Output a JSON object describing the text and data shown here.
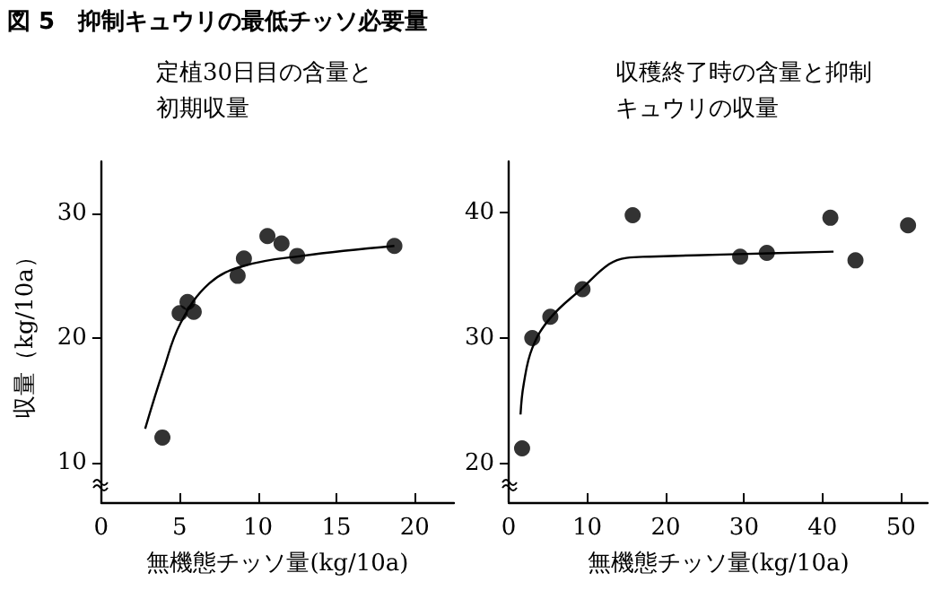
{
  "chart_data": [
    {
      "type": "scatter",
      "title": "図 5　抑制キュウリの最低チッソ必要量",
      "subtitle": "定植30日目の含量と初期収量",
      "xlabel": "無機態チッソ量(kg/10a)",
      "ylabel": "収量（kg/10a）",
      "xlim": [
        0,
        22.5
      ],
      "ylim": [
        6.8,
        34.2
      ],
      "xticks": [
        0,
        5,
        10,
        15,
        20
      ],
      "yticks": [
        10,
        20,
        30
      ],
      "grid": false,
      "marker": "circle",
      "series": [
        {
          "type": "scatter",
          "color": "#000000",
          "x": [
            3.9,
            5.0,
            5.5,
            5.9,
            8.7,
            9.1,
            10.6,
            11.5,
            12.5,
            18.7
          ],
          "values": [
            12.0,
            22.0,
            22.9,
            22.1,
            25.0,
            26.4,
            28.2,
            27.6,
            26.6,
            27.4
          ]
        },
        {
          "type": "line",
          "color": "#000000",
          "marker": "none",
          "line_style": "solid",
          "x": [
            2.8,
            3.96,
            5.06,
            6.9,
            9.1,
            12.8,
            18.7
          ],
          "values": [
            12.7,
            17.4,
            21.2,
            24.4,
            25.8,
            26.6,
            27.4
          ]
        }
      ]
    },
    {
      "type": "scatter",
      "subtitle": "収穫終了時の含量と抑制キュウリの収量",
      "xlabel": "無機態チッソ量(kg/10a)",
      "xlim": [
        0,
        53.4
      ],
      "ylim": [
        16.9,
        44.1
      ],
      "xticks": [
        0,
        10,
        20,
        30,
        40,
        50
      ],
      "yticks": [
        20,
        30,
        40
      ],
      "grid": false,
      "marker": "circle",
      "series": [
        {
          "type": "scatter",
          "color": "#000000",
          "x": [
            1.7,
            3.0,
            5.3,
            9.4,
            15.8,
            29.5,
            32.9,
            41.0,
            44.2,
            50.9
          ],
          "values": [
            21.2,
            30.0,
            31.7,
            33.9,
            39.8,
            36.5,
            36.8,
            39.6,
            36.2,
            39.0
          ]
        },
        {
          "type": "line",
          "color": "#000000",
          "marker": "none",
          "line_style": "solid",
          "x": [
            1.5,
            1.9,
            3.0,
            5.3,
            9.4,
            12.8,
            15.0,
            18.0,
            29.3,
            41.4
          ],
          "values": [
            23.9,
            26.3,
            29.2,
            31.6,
            34.0,
            35.9,
            36.4,
            36.5,
            36.7,
            36.9
          ]
        }
      ]
    }
  ]
}
